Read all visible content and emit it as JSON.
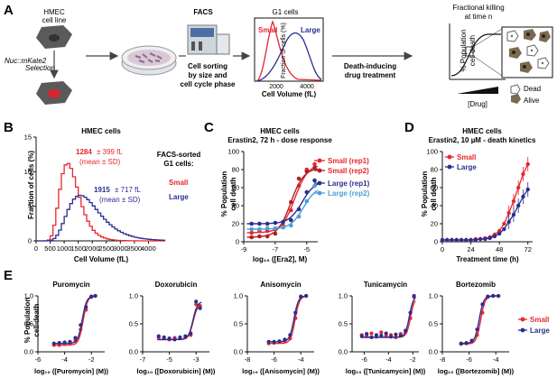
{
  "colors": {
    "small": "#e8262d",
    "large": "#2b2e8f",
    "large_rep2": "#4a9fd8",
    "cell_body": "#5a5a5a",
    "nucleus_red": "#d7262d"
  },
  "panelA": {
    "label": "A",
    "cell_line": [
      "HMEC",
      "cell line"
    ],
    "nuc_label": "Nuc::mKate2",
    "selection_label": "Selection",
    "facs_label": "FACS",
    "sorting_text": [
      "Cell sorting",
      "by size and",
      "cell cycle phase"
    ],
    "g1_title": "G1 cells",
    "g1_small": "Small",
    "g1_large": "Large",
    "g1_ylabel": "Fraction of cells (%)",
    "g1_xlabel": "Cell Volume (fL)",
    "g1_xticks": [
      "2000",
      "4000"
    ],
    "death_text": [
      "Death-inducing",
      "drug treatment"
    ],
    "fk_title": [
      "Fractional killing",
      "at time n"
    ],
    "fk_ylabel": [
      "% Population",
      "cell death"
    ],
    "fk_xlabel": "[Drug]",
    "dead": "Dead",
    "alive": "Alive"
  },
  "panelB": {
    "label": "B",
    "title": "HMEC cells",
    "ylabel": "Fraction of cells (%)",
    "xlabel": "Cell Volume (fL)",
    "small_mean": "1284",
    "small_sd": "± 399 fL",
    "small_note": "(mean ± SD)",
    "large_mean": "1915",
    "large_sd": "± 717 fL",
    "large_note": "(mean ± SD)",
    "legend_title": [
      "FACS-sorted",
      "G1 cells:"
    ],
    "legend_small": "Small",
    "legend_large": "Large"
  },
  "panelC": {
    "label": "C",
    "title": [
      "HMEC cells",
      "Erastin2, 72 h - dose response"
    ],
    "ylabel": [
      "% Population",
      "cell death"
    ],
    "xlabel": "log₁₀ ([Era2], M)",
    "legend": [
      "Small (rep1)",
      "Small (rep2)",
      "Large (rep1)",
      "Large (rep2)"
    ]
  },
  "panelD": {
    "label": "D",
    "title": [
      "HMEC cells",
      "Erastin2, 10 µM - death kinetics"
    ],
    "ylabel": [
      "% Population",
      "cell death"
    ],
    "xlabel": "Treatment time (h)",
    "legend": [
      "Small",
      "Large"
    ]
  },
  "panelE": {
    "label": "E",
    "ylabel": [
      "% Population",
      "cell death"
    ],
    "titles": [
      "Puromycin",
      "Doxorubicin",
      "Anisomycin",
      "Tunicamycin",
      "Bortezomib"
    ],
    "xlabels": [
      "log₁₀ ([Puromycin] (M))",
      "log₁₀ ([Doxorubicin] (M))",
      "log₁₀ ([Anisomycin] (M))",
      "log₁₀ ([Tunicamycin] (M))",
      "log₁₀ ([Bortezomib] (M))"
    ],
    "legend": [
      "Small",
      "Large"
    ]
  },
  "chart_data": [
    {
      "type": "line",
      "title": "HMEC cells",
      "xlabel": "Cell Volume (fL)",
      "ylabel": "Fraction of cells (%)",
      "xlim": [
        0,
        4500
      ],
      "ylim": [
        0,
        15
      ],
      "xticks": [
        0,
        500,
        1000,
        1500,
        2000,
        2500,
        3000,
        3500,
        4000
      ],
      "yticks": [
        0,
        5,
        10,
        15
      ],
      "series": [
        {
          "name": "Small",
          "mean": 1284,
          "sd": 399
        },
        {
          "name": "Large",
          "mean": 1915,
          "sd": 717
        }
      ]
    },
    {
      "type": "scatter",
      "title": "HMEC cells Erastin2, 72 h - dose response",
      "xlabel": "log₁₀ ([Era2], M)",
      "ylabel": "% Population cell death",
      "xlim": [
        -9,
        -4.3
      ],
      "ylim": [
        0,
        100
      ],
      "xticks": [
        -9,
        -7,
        -5
      ],
      "yticks": [
        0,
        20,
        40,
        60,
        80,
        100
      ],
      "x": [
        -8.5,
        -8.0,
        -7.5,
        -7.0,
        -6.5,
        -6.0,
        -5.5,
        -5.0,
        -4.5
      ],
      "series": [
        {
          "name": "Small (rep1)",
          "values": [
            10,
            12,
            12,
            14,
            18,
            35,
            62,
            80,
            86
          ]
        },
        {
          "name": "Small (rep2)",
          "values": [
            5,
            6,
            6,
            9,
            16,
            44,
            70,
            78,
            82
          ]
        },
        {
          "name": "Large (rep1)",
          "values": [
            20,
            20,
            20,
            21,
            22,
            24,
            36,
            55,
            68
          ]
        },
        {
          "name": "Large (rep2)",
          "values": [
            14,
            14,
            15,
            15,
            16,
            18,
            28,
            45,
            62
          ]
        }
      ]
    },
    {
      "type": "line",
      "title": "HMEC cells Erastin2, 10 µM - death kinetics",
      "xlabel": "Treatment time (h)",
      "ylabel": "% Population cell death",
      "xlim": [
        0,
        76
      ],
      "ylim": [
        0,
        100
      ],
      "xticks": [
        0,
        24,
        48,
        72
      ],
      "yticks": [
        0,
        20,
        40,
        60,
        80,
        100
      ],
      "x": [
        0,
        4,
        8,
        12,
        16,
        20,
        24,
        28,
        32,
        36,
        40,
        44,
        48,
        52,
        56,
        60,
        64,
        68,
        72
      ],
      "series": [
        {
          "name": "Small",
          "values": [
            2,
            2,
            2,
            2,
            2,
            2,
            2,
            3,
            3,
            4,
            5,
            8,
            12,
            20,
            32,
            45,
            60,
            75,
            86
          ]
        },
        {
          "name": "Large",
          "values": [
            2,
            2,
            2,
            2,
            2,
            2,
            2,
            2,
            3,
            3,
            4,
            6,
            9,
            14,
            22,
            30,
            40,
            50,
            58
          ]
        }
      ]
    },
    {
      "type": "scatter",
      "title": "Puromycin",
      "xlabel": "log₁₀ ([Puromycin] (M))",
      "xlim": [
        -6,
        -1
      ],
      "ylim": [
        0,
        100
      ],
      "xticks": [
        -6,
        -4,
        -2
      ],
      "yticks": [
        0.0,
        0.5,
        1.0
      ],
      "x": [
        -4.8,
        -4.4,
        -4.0,
        -3.6,
        -3.2,
        -2.8,
        -2.4,
        -2.0,
        -1.7
      ],
      "series": [
        {
          "name": "Small",
          "values": [
            12,
            12,
            14,
            16,
            20,
            40,
            75,
            98,
            100
          ]
        },
        {
          "name": "Large",
          "values": [
            15,
            16,
            17,
            18,
            25,
            48,
            80,
            99,
            100
          ]
        }
      ]
    },
    {
      "type": "scatter",
      "title": "Doxorubicin",
      "xlabel": "log₁₀ ([Doxorubicin] (M))",
      "xlim": [
        -7,
        -2
      ],
      "ylim": [
        0,
        100
      ],
      "xticks": [
        -7,
        -5,
        -3
      ],
      "yticks": [
        0.0,
        0.5,
        1.0
      ],
      "x": [
        -5.8,
        -5.4,
        -5.0,
        -4.6,
        -4.2,
        -3.8,
        -3.4,
        -3.0,
        -2.7
      ],
      "series": [
        {
          "name": "Small",
          "values": [
            26,
            24,
            22,
            25,
            24,
            26,
            30,
            85,
            82
          ]
        },
        {
          "name": "Large",
          "values": [
            28,
            26,
            24,
            22,
            26,
            28,
            33,
            90,
            78
          ]
        }
      ]
    },
    {
      "type": "scatter",
      "title": "Anisomycin",
      "xlabel": "log₁₀ ([Anisomycin] (M))",
      "xlim": [
        -8,
        -3
      ],
      "ylim": [
        0,
        100
      ],
      "xticks": [
        -8,
        -6,
        -4
      ],
      "yticks": [
        0.0,
        0.5,
        1.0
      ],
      "x": [
        -6.4,
        -6.0,
        -5.6,
        -5.2,
        -4.8,
        -4.4,
        -4.0,
        -3.6
      ],
      "series": [
        {
          "name": "Small",
          "values": [
            15,
            16,
            18,
            20,
            24,
            60,
            98,
            100
          ]
        },
        {
          "name": "Large",
          "values": [
            18,
            18,
            19,
            22,
            30,
            70,
            99,
            100
          ]
        }
      ]
    },
    {
      "type": "scatter",
      "title": "Tunicamycin",
      "xlabel": "log₁₀ ([Tunicamycin] (M))",
      "xlim": [
        -7,
        -1.5
      ],
      "ylim": [
        0,
        100
      ],
      "xticks": [
        -6,
        -4,
        -2
      ],
      "yticks": [
        0.0,
        0.5,
        1.0
      ],
      "x": [
        -6.2,
        -5.8,
        -5.4,
        -5.0,
        -4.6,
        -4.2,
        -3.8,
        -3.4,
        -3.0,
        -2.6,
        -2.2,
        -1.9
      ],
      "series": [
        {
          "name": "Small",
          "values": [
            30,
            28,
            33,
            27,
            35,
            28,
            30,
            26,
            32,
            35,
            60,
            98
          ]
        },
        {
          "name": "Large",
          "values": [
            28,
            32,
            26,
            30,
            29,
            33,
            27,
            31,
            29,
            38,
            70,
            100
          ]
        }
      ]
    },
    {
      "type": "scatter",
      "title": "Bortezomib",
      "xlabel": "log₁₀ ([Bortezomib] (M))",
      "xlim": [
        -8,
        -3
      ],
      "ylim": [
        0,
        100
      ],
      "xticks": [
        -8,
        -6,
        -4
      ],
      "yticks": [
        0.0,
        0.5,
        1.0
      ],
      "x": [
        -6.6,
        -6.2,
        -5.8,
        -5.4,
        -5.0,
        -4.6,
        -4.2,
        -3.8
      ],
      "series": [
        {
          "name": "Small",
          "values": [
            14,
            15,
            18,
            30,
            70,
            98,
            100,
            100
          ]
        },
        {
          "name": "Large",
          "values": [
            15,
            16,
            20,
            40,
            85,
            99,
            100,
            100
          ]
        }
      ]
    }
  ]
}
